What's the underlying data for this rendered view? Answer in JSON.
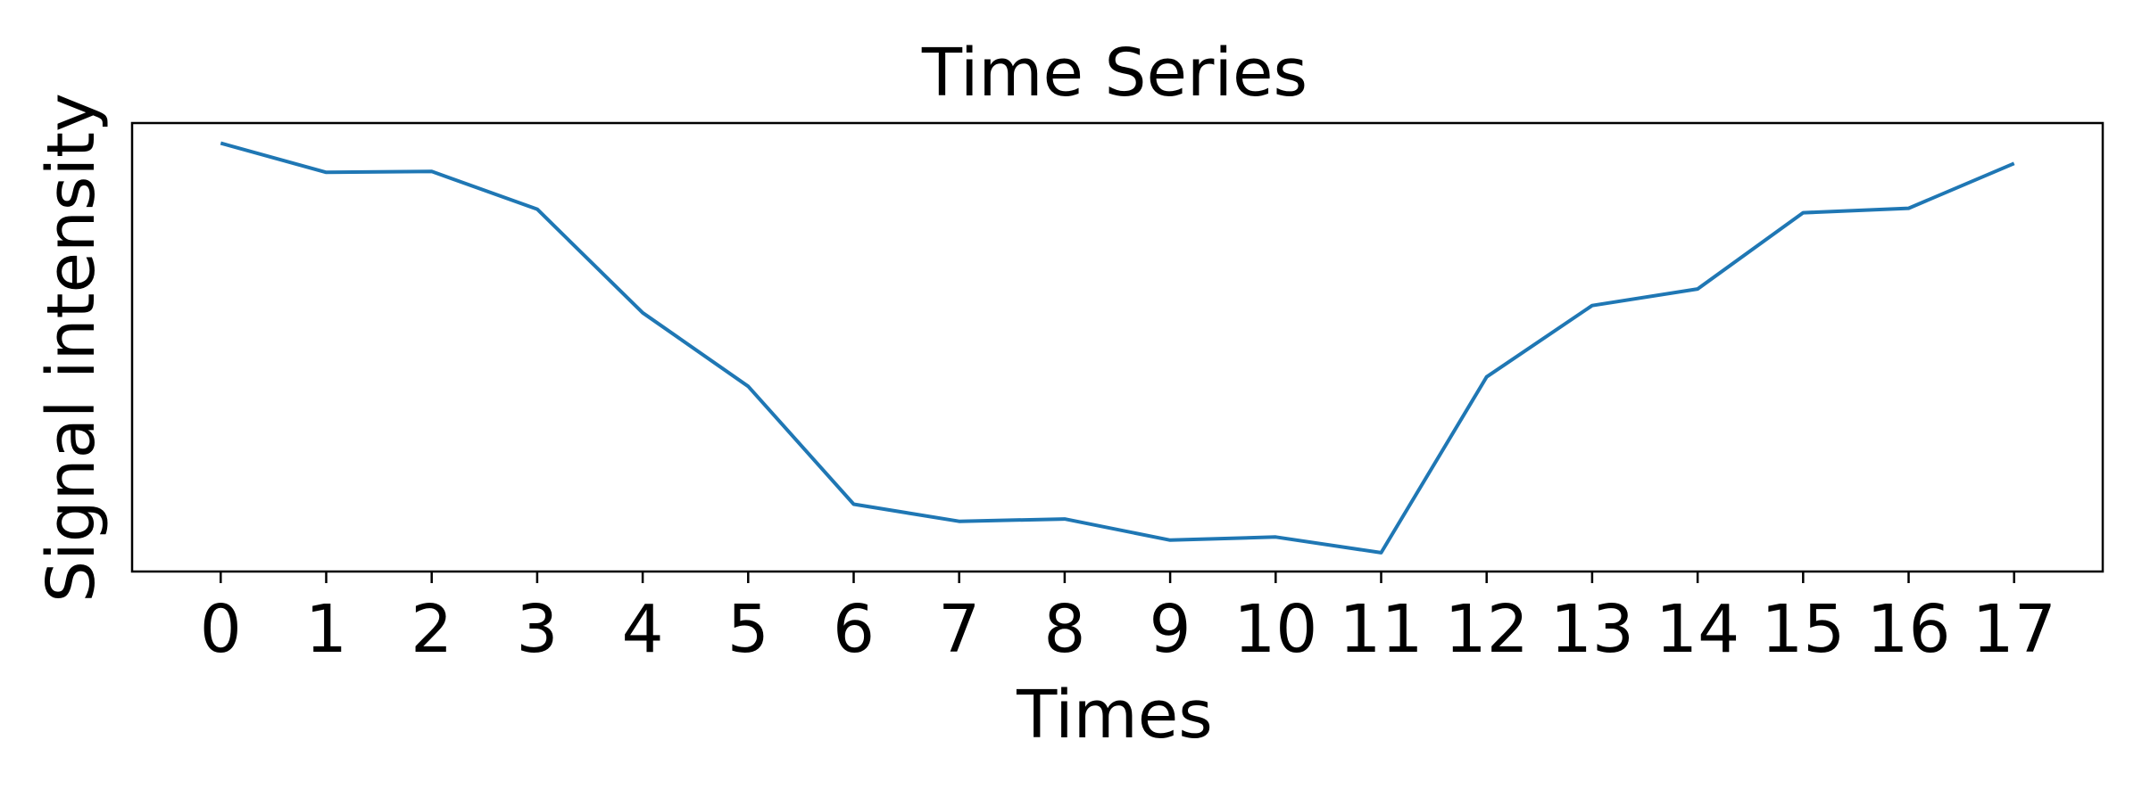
{
  "chart_data": {
    "type": "line",
    "title": "Time Series",
    "xlabel": "Times",
    "ylabel": "Signal intensity",
    "x": [
      0,
      1,
      2,
      3,
      4,
      5,
      6,
      7,
      8,
      9,
      10,
      11,
      12,
      13,
      14,
      15,
      16,
      17
    ],
    "x_tick_labels": [
      "0",
      "1",
      "2",
      "3",
      "4",
      "5",
      "6",
      "7",
      "8",
      "9",
      "10",
      "11",
      "12",
      "13",
      "14",
      "15",
      "16",
      "17"
    ],
    "series": [
      {
        "color": "#1f77b4",
        "values": [
          0.955,
          0.89,
          0.892,
          0.808,
          0.577,
          0.413,
          0.15,
          0.112,
          0.117,
          0.07,
          0.077,
          0.042,
          0.434,
          0.593,
          0.63,
          0.8,
          0.81,
          0.91
        ]
      }
    ],
    "xlim": [
      -0.84,
      17.84
    ],
    "ylim": [
      0.0,
      1.0
    ],
    "y_ticks_shown": false,
    "grid": false
  }
}
